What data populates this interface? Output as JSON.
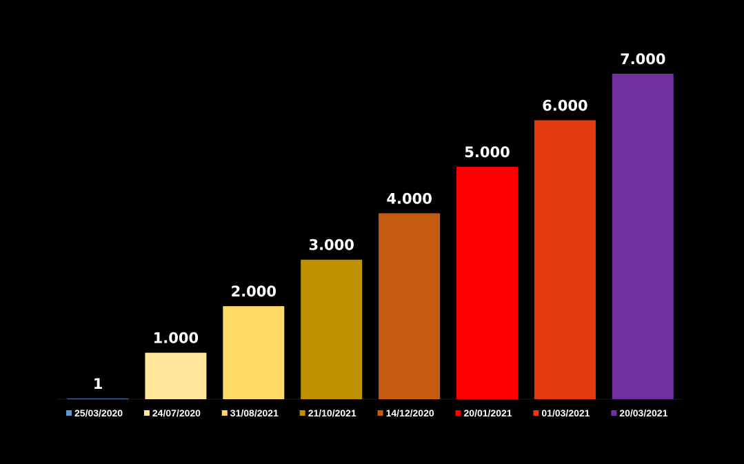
{
  "chart_data": {
    "type": "bar",
    "categories": [
      "25/03/2020",
      "24/07/2020",
      "31/08/2021",
      "21/10/2021",
      "14/12/2020",
      "20/01/2021",
      "01/03/2021",
      "20/03/2021"
    ],
    "values": [
      1,
      1000,
      2000,
      3000,
      4000,
      5000,
      6000,
      7000
    ],
    "value_labels": [
      "1",
      "1.000",
      "2.000",
      "3.000",
      "4.000",
      "5.000",
      "6.000",
      "7.000"
    ],
    "colors": [
      "#5B9BD5",
      "#FFE699",
      "#FFD966",
      "#BF9000",
      "#C55A11",
      "#FF0000",
      "#E33C10",
      "#7030A0"
    ],
    "ylim": [
      0,
      7000
    ],
    "grid": false,
    "legend_position": "bottom",
    "background": "#000000",
    "text_color": "#ffffff"
  }
}
